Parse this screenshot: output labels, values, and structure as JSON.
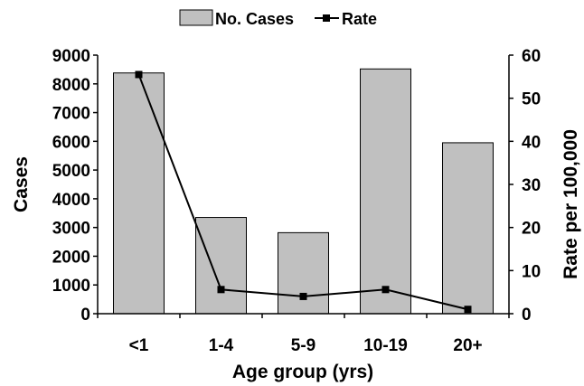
{
  "chart_data": {
    "type": "bar",
    "categories": [
      "<1",
      "1-4",
      "5-9",
      "10-19",
      "20+"
    ],
    "series": [
      {
        "name": "No. Cases",
        "type": "bar",
        "axis": "left",
        "color": "#c0c0c0",
        "values": [
          8380,
          3350,
          2820,
          8520,
          5950
        ]
      },
      {
        "name": "Rate",
        "type": "line",
        "axis": "right",
        "color": "#000000",
        "values": [
          55.5,
          5.6,
          4.0,
          5.6,
          1.0
        ]
      }
    ],
    "xlabel": "Age group (yrs)",
    "ylabel": "Cases",
    "y2label": "Rate per 100,000",
    "ylim": [
      0,
      9000
    ],
    "y2lim": [
      0,
      60
    ],
    "yticks": [
      0,
      1000,
      2000,
      3000,
      4000,
      5000,
      6000,
      7000,
      8000,
      9000
    ],
    "y2ticks": [
      0,
      10,
      20,
      30,
      40,
      50,
      60
    ],
    "grid": false,
    "legend": "top-center"
  }
}
